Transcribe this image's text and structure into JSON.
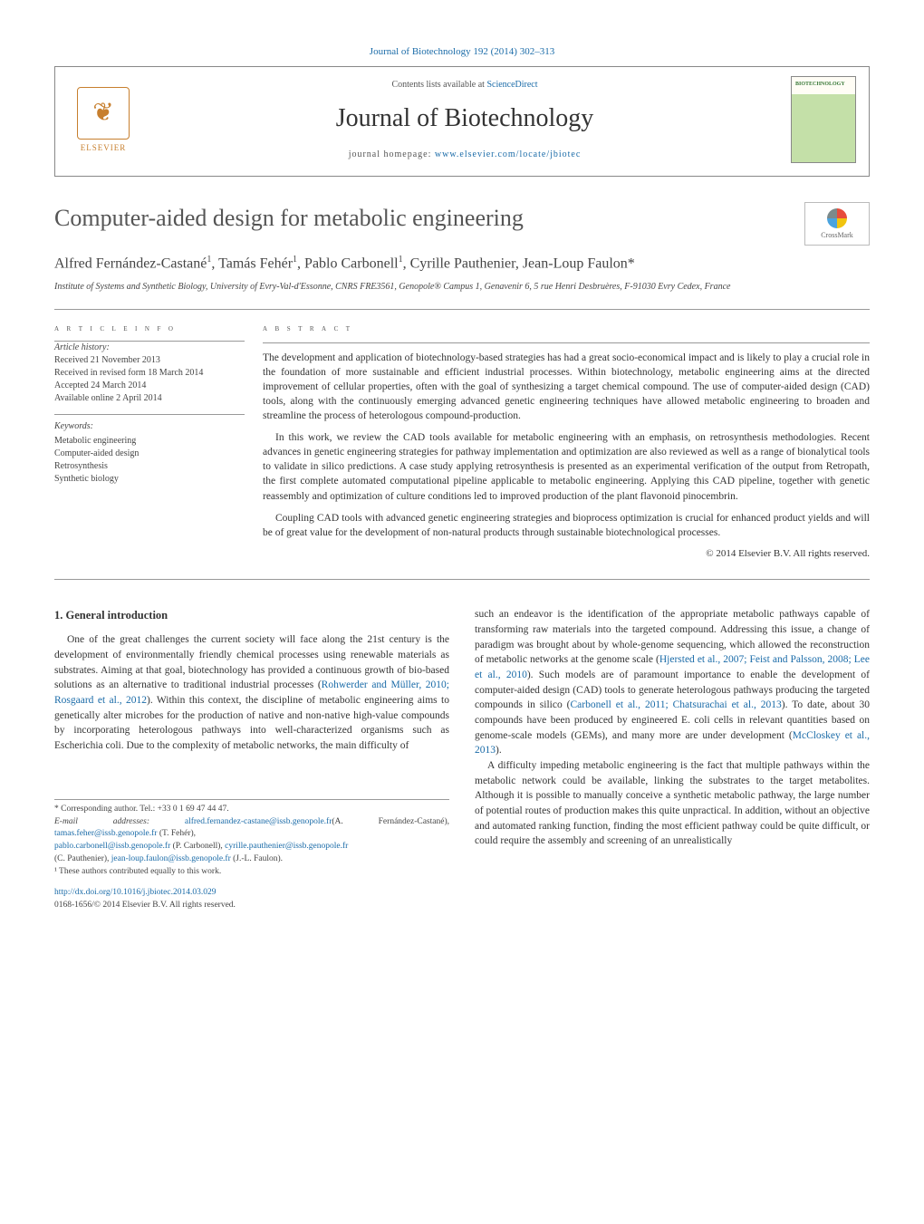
{
  "journal_ref": {
    "text": "Journal of Biotechnology 192 (2014) 302–313",
    "link_text": "Journal of Biotechnology 192 (2014) 302–313"
  },
  "header": {
    "contents_prefix": "Contents lists available at ",
    "contents_link": "ScienceDirect",
    "journal_name": "Journal of Biotechnology",
    "homepage_prefix": "journal homepage: ",
    "homepage_link": "www.elsevier.com/locate/jbiotec",
    "elsevier_label": "ELSEVIER",
    "cover_title": "BIOTECHNOLOGY"
  },
  "crossmark_label": "CrossMark",
  "article": {
    "title": "Computer-aided design for metabolic engineering",
    "authors_html": "Alfred Fernández-Castané<sup>1</sup>, Tamás Fehér<sup>1</sup>, Pablo Carbonell<sup>1</sup>, Cyrille Pauthenier, Jean-Loup Faulon*",
    "affiliation": "Institute of Systems and Synthetic Biology, University of Evry-Val-d'Essonne, CNRS FRE3561, Genopole® Campus 1, Genavenir 6, 5 rue Henri Desbruères, F-91030 Evry Cedex, France"
  },
  "info": {
    "heading": "a r t i c l e   i n f o",
    "history_label": "Article history:",
    "received": "Received 21 November 2013",
    "revised": "Received in revised form 18 March 2014",
    "accepted": "Accepted 24 March 2014",
    "online": "Available online 2 April 2014",
    "keywords_label": "Keywords:",
    "keywords": [
      "Metabolic engineering",
      "Computer-aided design",
      "Retrosynthesis",
      "Synthetic biology"
    ]
  },
  "abstract": {
    "heading": "a b s t r a c t",
    "p1": "The development and application of biotechnology-based strategies has had a great socio-economical impact and is likely to play a crucial role in the foundation of more sustainable and efficient industrial processes. Within biotechnology, metabolic engineering aims at the directed improvement of cellular properties, often with the goal of synthesizing a target chemical compound. The use of computer-aided design (CAD) tools, along with the continuously emerging advanced genetic engineering techniques have allowed metabolic engineering to broaden and streamline the process of heterologous compound-production.",
    "p2": "In this work, we review the CAD tools available for metabolic engineering with an emphasis, on retrosynthesis methodologies. Recent advances in genetic engineering strategies for pathway implementation and optimization are also reviewed as well as a range of bionalytical tools to validate in silico predictions. A case study applying retrosynthesis is presented as an experimental verification of the output from Retropath, the first complete automated computational pipeline applicable to metabolic engineering. Applying this CAD pipeline, together with genetic reassembly and optimization of culture conditions led to improved production of the plant flavonoid pinocembrin.",
    "p3": "Coupling CAD tools with advanced genetic engineering strategies and bioprocess optimization is crucial for enhanced product yields and will be of great value for the development of non-natural products through sustainable biotechnological processes.",
    "copyright": "© 2014 Elsevier B.V. All rights reserved."
  },
  "body": {
    "section_heading": "1. General introduction",
    "col1_p1a": "One of the great challenges the current society will face along the 21st century is the development of environmentally friendly chemical processes using renewable materials as substrates. Aiming at that goal, biotechnology has provided a continuous growth of bio-based solutions as an alternative to traditional industrial processes (",
    "col1_ref1": "Rohwerder and Müller, 2010; Rosgaard et al., 2012",
    "col1_p1b": "). Within this context, the discipline of metabolic engineering aims to genetically alter microbes for the production of native and non-native high-value compounds by incorporating heterologous pathways into well-characterized organisms such as Escherichia coli. Due to the complexity of metabolic networks, the main difficulty of",
    "col2_p1a": "such an endeavor is the identification of the appropriate metabolic pathways capable of transforming raw materials into the targeted compound. Addressing this issue, a change of paradigm was brought about by whole-genome sequencing, which allowed the reconstruction of metabolic networks at the genome scale (",
    "col2_ref1": "Hjersted et al., 2007; Feist and Palsson, 2008; Lee et al., 2010",
    "col2_p1b": "). Such models are of paramount importance to enable the development of computer-aided design (CAD) tools to generate heterologous pathways producing the targeted compounds in silico (",
    "col2_ref2": "Carbonell et al., 2011; Chatsurachai et al., 2013",
    "col2_p1c": "). To date, about 30 compounds have been produced by engineered E. coli cells in relevant quantities based on genome-scale models (GEMs), and many more are under development (",
    "col2_ref3": "McCloskey et al., 2013",
    "col2_p1d": ").",
    "col2_p2": "A difficulty impeding metabolic engineering is the fact that multiple pathways within the metabolic network could be available, linking the substrates to the target metabolites. Although it is possible to manually conceive a synthetic metabolic pathway, the large number of potential routes of production makes this quite unpractical. In addition, without an objective and automated ranking function, finding the most efficient pathway could be quite difficult, or could require the assembly and screening of an unrealistically"
  },
  "footnotes": {
    "corresponding": "* Corresponding author. Tel.: +33 0 1 69 47 44 47.",
    "email_label": "E-mail addresses: ",
    "emails": [
      {
        "addr": "alfred.fernandez-castane@issb.genopole.fr",
        "who": "(A. Fernández-Castané), "
      },
      {
        "addr": "tamas.feher@issb.genopole.fr",
        "who": " (T. Fehér), "
      },
      {
        "addr": "pablo.carbonell@issb.genopole.fr",
        "who": " (P. Carbonell), "
      },
      {
        "addr": "cyrille.pauthenier@issb.genopole.fr",
        "who": " (C. Pauthenier), "
      },
      {
        "addr": "jean-loup.faulon@issb.genopole.fr",
        "who": " (J.-L. Faulon)."
      }
    ],
    "equal": "¹ These authors contributed equally to this work."
  },
  "footer": {
    "doi": "http://dx.doi.org/10.1016/j.jbiotec.2014.03.029",
    "issn_copyright": "0168-1656/© 2014 Elsevier B.V. All rights reserved."
  },
  "colors": {
    "link": "#1a6ba8",
    "elsevier": "#c77f2e",
    "text": "#333333",
    "rule": "#999999"
  }
}
